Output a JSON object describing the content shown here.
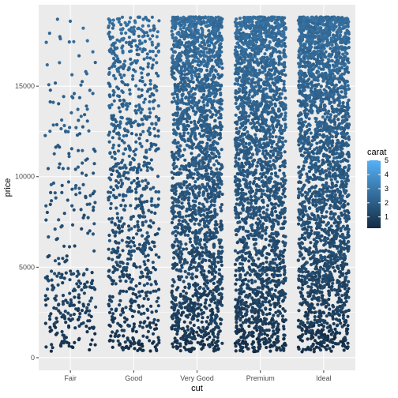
{
  "chart_data": {
    "type": "scatter",
    "jitter": true,
    "title": "",
    "xlabel": "cut",
    "ylabel": "price",
    "categories": [
      "Fair",
      "Good",
      "Very Good",
      "Premium",
      "Ideal"
    ],
    "ylim": [
      -700,
      19500
    ],
    "yticks": [
      0,
      5000,
      10000,
      15000
    ],
    "ytick_labels": [
      "0",
      "5000",
      "10000",
      "15000"
    ],
    "grid": true,
    "panel_background": "#ebebeb",
    "point_count_per_category": [
      320,
      900,
      2200,
      2400,
      2600
    ],
    "price_range": [
      326,
      18823
    ],
    "color_scale": {
      "title": "carat",
      "low": 0.2,
      "high": 5.01,
      "low_color": "#132b43",
      "high_color": "#56b1f7",
      "breaks": [
        1,
        2,
        3,
        4,
        5
      ],
      "break_labels": [
        "1",
        "2",
        "3",
        "4",
        "5"
      ],
      "legend_position": "right"
    }
  }
}
